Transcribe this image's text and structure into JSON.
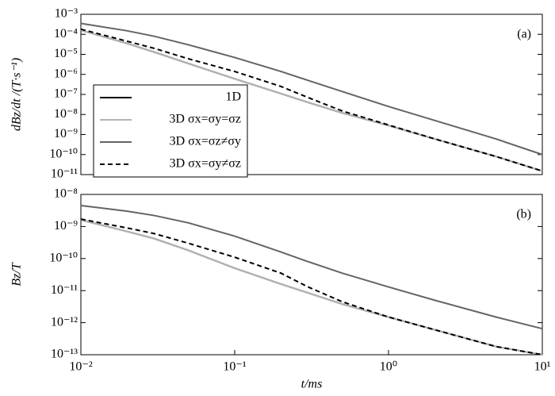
{
  "chart_data": [
    {
      "type": "line",
      "panel_label": "(a)",
      "ylabel": "dBz/dt /(T·s⁻¹)",
      "log_x": true,
      "log_y": true,
      "legend": "center left",
      "x": [
        0.01,
        0.02,
        0.03,
        0.05,
        0.1,
        0.2,
        0.3,
        0.5,
        1,
        2,
        5,
        10
      ],
      "xlim": [
        0.01,
        10
      ],
      "ylim": [
        1e-11,
        0.001
      ],
      "yticks": [
        {
          "value": 1e-11,
          "label": "10⁻¹¹"
        },
        {
          "value": 1e-10,
          "label": "10⁻¹⁰"
        },
        {
          "value": 1e-09,
          "label": "10⁻⁹"
        },
        {
          "value": 1e-08,
          "label": "10⁻⁸"
        },
        {
          "value": 1e-07,
          "label": "10⁻⁷"
        },
        {
          "value": 1e-06,
          "label": "10⁻⁶"
        },
        {
          "value": 1e-05,
          "label": "10⁻⁵"
        },
        {
          "value": 0.0001,
          "label": "10⁻⁴"
        },
        {
          "value": 0.001,
          "label": "10⁻³"
        }
      ],
      "series": [
        {
          "name": "1D",
          "color": "#000000",
          "linestyle": "solid",
          "values": [
            0.00016,
            3.5e-05,
            1.3e-05,
            3.5e-06,
            6e-07,
            1.1e-07,
            4e-08,
            1.2e-08,
            2.8e-09,
            6e-10,
            8e-11,
            1.5e-11
          ]
        },
        {
          "name": "3D σx=σy=σz",
          "color": "#b4b4b4",
          "linestyle": "solid",
          "values": [
            0.00016,
            3.5e-05,
            1.3e-05,
            3.5e-06,
            6e-07,
            1.1e-07,
            4e-08,
            1.2e-08,
            2.8e-09,
            6e-10,
            8e-11,
            1.5e-11
          ]
        },
        {
          "name": "3D σx=σz≠σy",
          "color": "#646464",
          "linestyle": "solid",
          "values": [
            0.00035,
            0.00015,
            8e-05,
            3e-05,
            7e-06,
            1.4e-06,
            5e-07,
            1.4e-07,
            2.5e-08,
            5e-09,
            6e-10,
            1e-10
          ]
        },
        {
          "name": "3D σx=σy≠σz",
          "color": "#000000",
          "linestyle": "dashed",
          "values": [
            0.00018,
            4.5e-05,
            2e-05,
            6e-06,
            1.4e-06,
            2.5e-07,
            7e-08,
            1.5e-08,
            3e-09,
            6e-10,
            8e-11,
            1.5e-11
          ]
        }
      ]
    },
    {
      "type": "line",
      "panel_label": "(b)",
      "ylabel": "Bz/T",
      "xlabel": "t/ms",
      "log_x": true,
      "log_y": true,
      "x": [
        0.01,
        0.02,
        0.03,
        0.05,
        0.1,
        0.2,
        0.3,
        0.5,
        1,
        2,
        5,
        10
      ],
      "xlim": [
        0.01,
        10
      ],
      "xticks": [
        {
          "value": 0.01,
          "label": "10⁻²"
        },
        {
          "value": 0.1,
          "label": "10⁻¹"
        },
        {
          "value": 1,
          "label": "10⁰"
        },
        {
          "value": 10,
          "label": "10¹"
        }
      ],
      "ylim": [
        1e-13,
        1e-08
      ],
      "yticks": [
        {
          "value": 1e-13,
          "label": "10⁻¹³"
        },
        {
          "value": 1e-12,
          "label": "10⁻¹²"
        },
        {
          "value": 1e-11,
          "label": "10⁻¹¹"
        },
        {
          "value": 1e-10,
          "label": "10⁻¹⁰"
        },
        {
          "value": 1e-09,
          "label": "10⁻⁹"
        },
        {
          "value": 1e-08,
          "label": "10⁻⁸"
        }
      ],
      "series": [
        {
          "color": "#000000",
          "linestyle": "solid",
          "values": [
            1.6e-09,
            7e-10,
            4.2e-10,
            1.8e-10,
            5e-11,
            1.6e-11,
            8.5e-12,
            3.8e-12,
            1.5e-12,
            6e-13,
            1.8e-13,
            1e-13
          ]
        },
        {
          "color": "#b4b4b4",
          "linestyle": "solid",
          "values": [
            1.6e-09,
            7e-10,
            4.2e-10,
            1.8e-10,
            5e-11,
            1.6e-11,
            8.5e-12,
            3.8e-12,
            1.5e-12,
            6e-13,
            1.8e-13,
            1e-13
          ]
        },
        {
          "color": "#646464",
          "linestyle": "solid",
          "values": [
            4.5e-09,
            3e-09,
            2.2e-09,
            1.3e-09,
            5e-10,
            1.6e-10,
            8e-11,
            3.5e-11,
            1.3e-11,
            5e-12,
            1.5e-12,
            6.5e-13
          ]
        },
        {
          "color": "#000000",
          "linestyle": "dashed",
          "values": [
            1.7e-09,
            9e-10,
            6e-10,
            3e-10,
            1.1e-10,
            3.5e-11,
            1.3e-11,
            4.5e-12,
            1.5e-12,
            6e-13,
            1.8e-13,
            1e-13
          ]
        }
      ]
    }
  ]
}
